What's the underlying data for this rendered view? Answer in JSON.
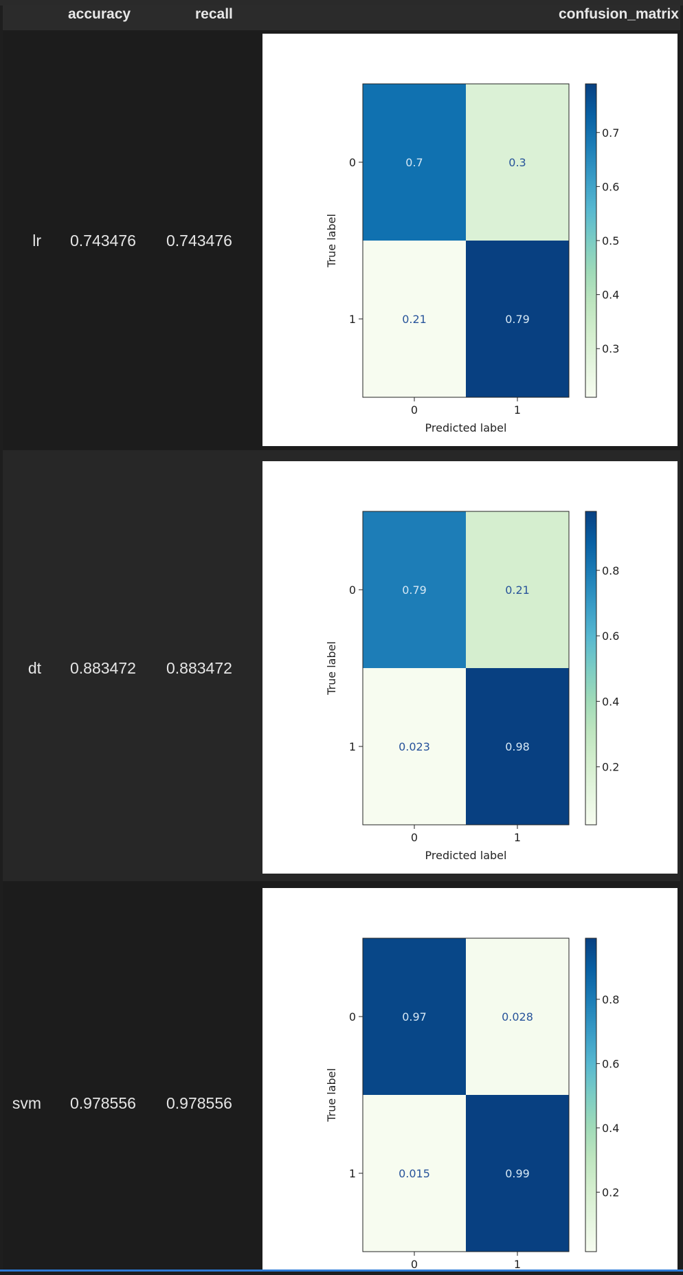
{
  "table": {
    "headers": {
      "accuracy": "accuracy",
      "recall": "recall",
      "confusion_matrix": "confusion_matrix"
    },
    "rows": [
      {
        "index": "lr",
        "accuracy": "0.743476",
        "recall": "0.743476"
      },
      {
        "index": "dt",
        "accuracy": "0.883472",
        "recall": "0.883472"
      },
      {
        "index": "svm",
        "accuracy": "0.978556",
        "recall": "0.978556"
      }
    ]
  },
  "chart_data": [
    {
      "type": "heatmap",
      "xlabel": "Predicted label",
      "ylabel": "True label",
      "x_categories": [
        "0",
        "1"
      ],
      "y_categories": [
        "0",
        "1"
      ],
      "cell_labels": [
        [
          "0.7",
          "0.3"
        ],
        [
          "0.21",
          "0.79"
        ]
      ],
      "values": [
        [
          0.7,
          0.3
        ],
        [
          0.21,
          0.79
        ]
      ],
      "colorbar_ticks": [
        "0.3",
        "0.4",
        "0.5",
        "0.6",
        "0.7"
      ],
      "colorbar_tick_values": [
        0.3,
        0.4,
        0.5,
        0.6,
        0.7
      ],
      "colorbar_range": [
        0.21,
        0.79
      ],
      "colormap": "GnBu"
    },
    {
      "type": "heatmap",
      "xlabel": "Predicted label",
      "ylabel": "True label",
      "x_categories": [
        "0",
        "1"
      ],
      "y_categories": [
        "0",
        "1"
      ],
      "cell_labels": [
        [
          "0.79",
          "0.21"
        ],
        [
          "0.023",
          "0.98"
        ]
      ],
      "values": [
        [
          0.79,
          0.21
        ],
        [
          0.023,
          0.98
        ]
      ],
      "colorbar_ticks": [
        "0.2",
        "0.4",
        "0.6",
        "0.8"
      ],
      "colorbar_tick_values": [
        0.2,
        0.4,
        0.6,
        0.8
      ],
      "colorbar_range": [
        0.023,
        0.98
      ],
      "colormap": "GnBu"
    },
    {
      "type": "heatmap",
      "xlabel": "",
      "ylabel": "True label",
      "x_categories": [
        "0",
        "1"
      ],
      "y_categories": [
        "0",
        "1"
      ],
      "cell_labels": [
        [
          "0.97",
          "0.028"
        ],
        [
          "0.015",
          "0.99"
        ]
      ],
      "values": [
        [
          0.97,
          0.028
        ],
        [
          0.015,
          0.99
        ]
      ],
      "colorbar_ticks": [
        "0.2",
        "0.4",
        "0.6",
        "0.8"
      ],
      "colorbar_tick_values": [
        0.2,
        0.4,
        0.6,
        0.8
      ],
      "colorbar_range": [
        0.015,
        0.99
      ],
      "colormap": "GnBu"
    }
  ]
}
